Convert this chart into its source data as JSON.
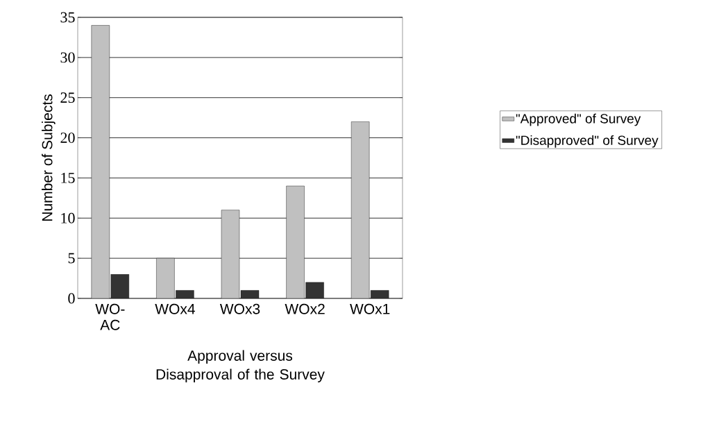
{
  "chart_data": {
    "type": "bar",
    "xlabel": "Approval versus Disapproval of the Survey",
    "ylabel": "Number of Subjects",
    "categories": [
      "WO-AC",
      "WOx4",
      "WOx3",
      "WOx2",
      "WOx1"
    ],
    "series": [
      {
        "name": "\"Approved\" of Survey",
        "color": "#c0c0c0",
        "values": [
          34,
          5,
          11,
          14,
          22
        ]
      },
      {
        "name": "\"Disapproved\" of Survey",
        "color": "#333333",
        "values": [
          3,
          1,
          1,
          2,
          1
        ]
      }
    ],
    "ylim": [
      0,
      35
    ],
    "yticks": [
      0,
      5,
      10,
      15,
      20,
      25,
      30,
      35
    ],
    "grid": "y",
    "legend": "right"
  }
}
